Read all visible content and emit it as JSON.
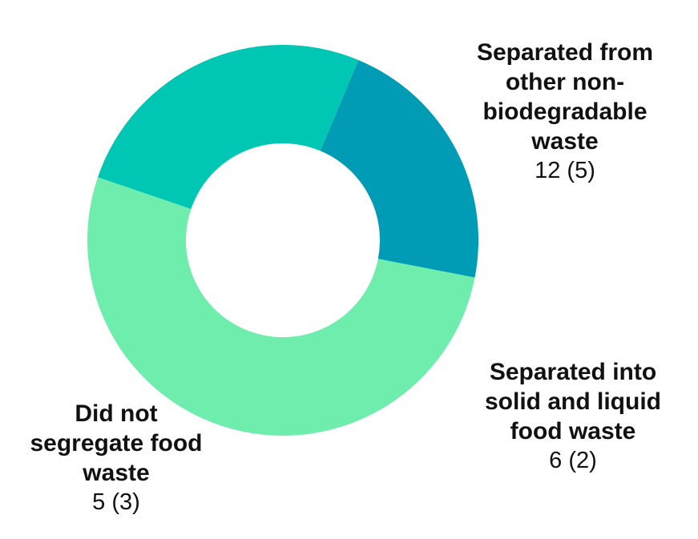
{
  "chart_data": {
    "type": "pie",
    "donut": true,
    "slices": [
      {
        "label": "Separated from other non-biodegradable waste",
        "value": 12,
        "value_label": "12 (5)",
        "color": "#6eedac"
      },
      {
        "label": "Separated into solid and liquid food waste",
        "value": 6,
        "value_label": "6 (2)",
        "color": "#00c7b3"
      },
      {
        "label": "Did not segregate food waste",
        "value": 5,
        "value_label": "5 (3)",
        "color": "#009bb5"
      }
    ]
  }
}
